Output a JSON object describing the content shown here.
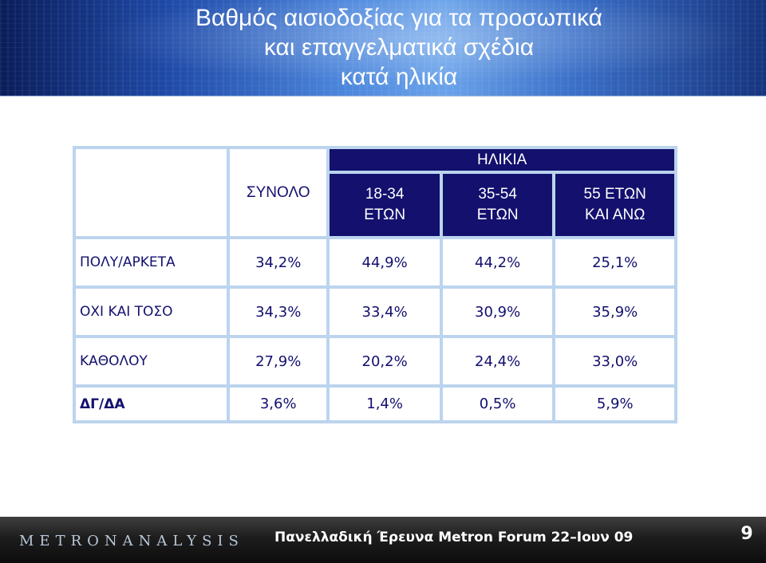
{
  "header": {
    "title_line1": "Βαθμός αισιοδοξίας για τα προσωπικά",
    "title_line2": "και επαγγελματικά σχέδια",
    "title_line3": "κατά ηλικία"
  },
  "table": {
    "group_header": "ΗΛΙΚΙΑ",
    "total_header": "ΣΥΝΟΛΟ",
    "age_groups": [
      {
        "line1": "18-34",
        "line2": "ΕΤΩΝ"
      },
      {
        "line1": "35-54",
        "line2": "ΕΤΩΝ"
      },
      {
        "line1": "55 ΕΤΩΝ",
        "line2": "ΚΑΙ ΑΝΩ"
      }
    ],
    "rows": [
      {
        "label": "ΠΟΛΥ/ΑΡΚΕΤΑ",
        "values": [
          "34,2%",
          "44,9%",
          "44,2%",
          "25,1%"
        ]
      },
      {
        "label": "ΟΧΙ ΚΑΙ ΤΟΣΟ",
        "values": [
          "34,3%",
          "33,4%",
          "30,9%",
          "35,9%"
        ]
      },
      {
        "label": "ΚΑΘΟΛΟΥ",
        "values": [
          "27,9%",
          "20,2%",
          "24,4%",
          "33,0%"
        ]
      },
      {
        "label": "ΔΓ/ΔΑ",
        "values": [
          "3,6%",
          "1,4%",
          "0,5%",
          "5,9%"
        ]
      }
    ],
    "highlight_color": "#e0111b",
    "header_color": "#13106e"
  },
  "footer": {
    "logo": "METRONANALYSIS",
    "text": "Πανελλαδική Έρευνα Metron Forum 22–Ιουν 09",
    "page_number": "9"
  }
}
